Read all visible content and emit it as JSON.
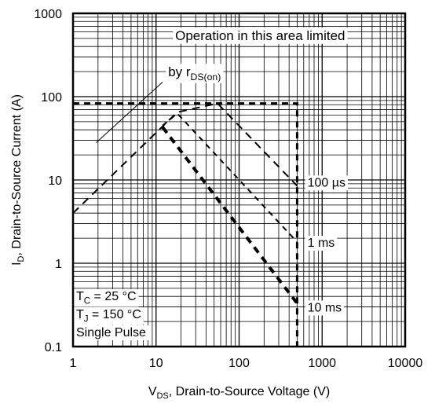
{
  "chart_data": {
    "type": "line",
    "x_scale": "log",
    "y_scale": "log",
    "xlim": [
      1,
      10000
    ],
    "ylim": [
      0.1,
      1000
    ],
    "grid": true,
    "x_ticks": [
      {
        "value": 1,
        "label": "1"
      },
      {
        "value": 10,
        "label": "10"
      },
      {
        "value": 100,
        "label": "100"
      },
      {
        "value": 1000,
        "label": "1000"
      },
      {
        "value": 10000,
        "label": "10000"
      }
    ],
    "y_ticks": [
      {
        "value": 0.1,
        "label": "0.1"
      },
      {
        "value": 1,
        "label": "1"
      },
      {
        "value": 10,
        "label": "10"
      },
      {
        "value": 100,
        "label": "100"
      },
      {
        "value": 1000,
        "label": "1000"
      }
    ],
    "xlabel": {
      "main": "V",
      "sub": "DS",
      "rest": ", Drain-to-Source Voltage (V)"
    },
    "ylabel": {
      "main": "I",
      "sub": "D",
      "rest": ", Drain-to-Source Current (A)"
    },
    "series": [
      {
        "name": "100 µs",
        "points": [
          [
            1,
            4
          ],
          [
            18,
            65
          ],
          [
            55,
            83
          ],
          [
            500,
            8.5
          ]
        ]
      },
      {
        "name": "1 ms",
        "points": [
          [
            12,
            45
          ],
          [
            18,
            63
          ],
          [
            500,
            1.8
          ]
        ]
      },
      {
        "name": "10 ms",
        "points": [
          [
            12,
            43
          ],
          [
            500,
            0.33
          ]
        ]
      },
      {
        "name": "",
        "points": [
          [
            1,
            83
          ],
          [
            500,
            83
          ],
          [
            500,
            0.1
          ]
        ]
      }
    ],
    "series_labels": [
      "100 µs",
      "1 ms",
      "10 ms"
    ],
    "annotation": {
      "line1": "Operation in this area limited",
      "line2": "by r",
      "line2_sub": "DS(on)",
      "pointer_from": [
        1.9,
        28
      ],
      "pointer_to": [
        12,
        150
      ]
    },
    "conditions": {
      "tc": {
        "main": "T",
        "sub": "C",
        "rest": " = 25 °C"
      },
      "tj": {
        "main": "T",
        "sub": "J",
        "rest": " = 150 °C"
      },
      "pulse": "Single Pulse"
    }
  }
}
